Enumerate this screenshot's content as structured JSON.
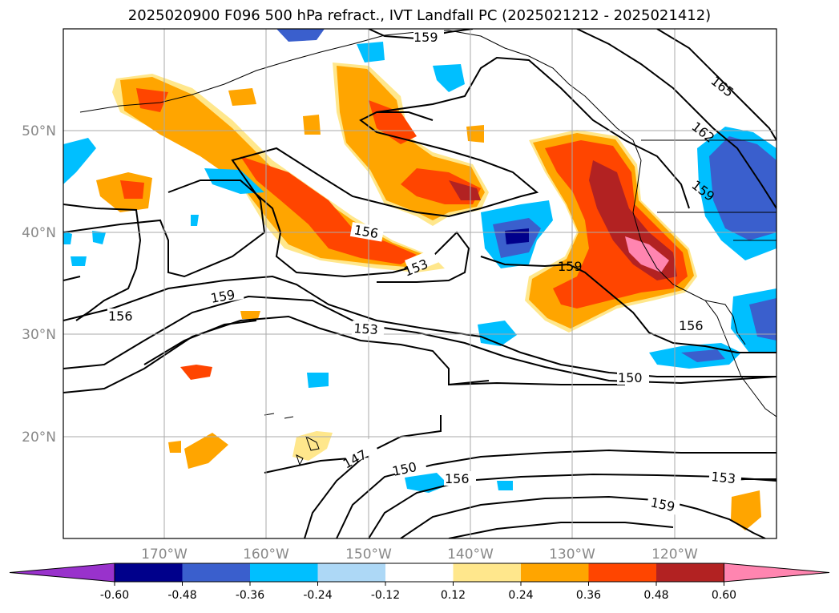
{
  "title": "2025020900 F096 500 hPa refract., IVT Landfall PC (2025021212 - 2025021412)",
  "map": {
    "lon_labels": [
      "170°W",
      "160°W",
      "150°W",
      "140°W",
      "130°W",
      "120°W"
    ],
    "lat_labels": [
      "50°N",
      "40°N",
      "30°N",
      "20°N"
    ],
    "gridlines": true
  },
  "contour_labels": [
    "159",
    "165",
    "162",
    "159",
    "156",
    "153",
    "159",
    "156",
    "159",
    "156",
    "153",
    "150",
    "147",
    "150",
    "156",
    "153",
    "159"
  ],
  "colorbar": {
    "ticks": [
      "-0.60",
      "-0.48",
      "-0.36",
      "-0.24",
      "-0.12",
      "0.12",
      "0.24",
      "0.36",
      "0.48",
      "0.60"
    ],
    "colors": [
      "#9932cc",
      "#00008b",
      "#3a5fcd",
      "#00bfff",
      "#add8f6",
      "#ffffff",
      "#ffe78c",
      "#ffa500",
      "#ff4500",
      "#b22222",
      "#ff85b0"
    ],
    "extend": "both"
  }
}
